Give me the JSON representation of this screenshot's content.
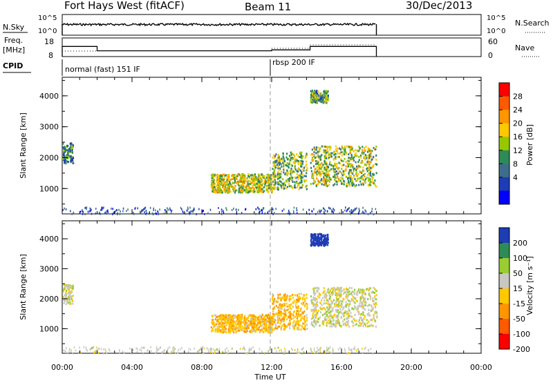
{
  "header": {
    "title": "Fort Hays West (fitACF)",
    "beam": "Beam 11",
    "date": "30/Dec/2013"
  },
  "status_panels": {
    "nsky_label": "N.Sky",
    "nsky_ticks": [
      "10^5",
      "10^0"
    ],
    "nsky_right_ticks": [
      "10^5",
      "10^0"
    ],
    "nsearch_label": "N.Search",
    "freq_label_line1": "Freq.",
    "freq_label_line2": "[MHz]",
    "freq_ticks": [
      "18",
      "8"
    ],
    "nave_ticks": [
      "60",
      "0"
    ],
    "nave_label": "Nave",
    "cpid_label": "CPID"
  },
  "cpid_segments": [
    {
      "start_hour": 0,
      "label": "normal (fast) 151 IF"
    },
    {
      "start_hour": 12,
      "label": "rbsp 200 IF"
    }
  ],
  "frequency_trace": [
    {
      "from_hour": 0,
      "to_hour": 2,
      "mhz": 15
    },
    {
      "from_hour": 2,
      "to_hour": 12,
      "mhz": 12
    },
    {
      "from_hour": 12,
      "to_hour": 14.2,
      "mhz": 12.6
    },
    {
      "from_hour": 14.2,
      "to_hour": 18,
      "mhz": 15
    }
  ],
  "data_end_hour": 18,
  "ylabel": "Slant Range [km]",
  "xlabel": "Time UT",
  "x_ticks": [
    "00:00",
    "04:00",
    "08:00",
    "12:00",
    "16:00",
    "20:00",
    "00:00"
  ],
  "y_ticks": [
    "1000",
    "2000",
    "3000",
    "4000"
  ],
  "power_scale": {
    "label": "Power [dB]",
    "ticks": [
      "28",
      "24",
      "20",
      "16",
      "12",
      "8",
      "4"
    ],
    "colors": [
      "#ff0000",
      "#ff5a00",
      "#ff9600",
      "#ffc800",
      "#96c800",
      "#2e8b57",
      "#3c6e8c",
      "#1e3cb4",
      "#0000ff"
    ]
  },
  "velocity_scale": {
    "label": "Velocity [m s⁻¹]",
    "ticks": [
      "200",
      "100",
      "50",
      "15",
      "-15",
      "-50",
      "-100",
      "-200"
    ],
    "colors": [
      "#1e3cb4",
      "#2e8b57",
      "#9acd32",
      "#c8c8c0",
      "#ffc800",
      "#ff9600",
      "#ff5a00",
      "#ff0000"
    ]
  },
  "chart_data": [
    {
      "type": "heatmap",
      "title": "Fort Hays West (fitACF)",
      "variable": "Power",
      "xlabel": "Time UT",
      "ylabel": "Slant Range [km]",
      "xlim_hours": [
        0,
        24
      ],
      "ylim_km": [
        180,
        4600
      ],
      "colorbar": {
        "label": "Power [dB]",
        "range": [
          0,
          32
        ]
      },
      "regions": [
        {
          "t": [
            0.0,
            0.6
          ],
          "km": [
            1850,
            2500
          ],
          "db_typical": 10
        },
        {
          "t": [
            8.5,
            12.0
          ],
          "km": [
            900,
            1500
          ],
          "db_typical": 18
        },
        {
          "t": [
            12.0,
            14.0
          ],
          "km": [
            1000,
            2200
          ],
          "db_typical": 14
        },
        {
          "t": [
            14.2,
            15.2
          ],
          "km": [
            3800,
            4200
          ],
          "db_typical": 12
        },
        {
          "t": [
            14.2,
            18.0
          ],
          "km": [
            1100,
            2400
          ],
          "db_typical": 16
        }
      ]
    },
    {
      "type": "heatmap",
      "title": "Fort Hays West (fitACF)",
      "variable": "Velocity",
      "xlabel": "Time UT",
      "ylabel": "Slant Range [km]",
      "xlim_hours": [
        0,
        24
      ],
      "ylim_km": [
        180,
        4600
      ],
      "colorbar": {
        "label": "Velocity [m s⁻¹]",
        "range": [
          -200,
          200
        ]
      },
      "regions": [
        {
          "t": [
            0.0,
            0.6
          ],
          "km": [
            1850,
            2500
          ],
          "ms_typical": 0
        },
        {
          "t": [
            8.5,
            12.0
          ],
          "km": [
            900,
            1500
          ],
          "ms_typical": -40
        },
        {
          "t": [
            12.0,
            14.0
          ],
          "km": [
            1000,
            2200
          ],
          "ms_typical": -40
        },
        {
          "t": [
            14.2,
            15.2
          ],
          "km": [
            3800,
            4200
          ],
          "ms_typical": 200
        },
        {
          "t": [
            14.2,
            18.0
          ],
          "km": [
            1100,
            2400
          ],
          "ms_typical": 0
        }
      ]
    }
  ]
}
